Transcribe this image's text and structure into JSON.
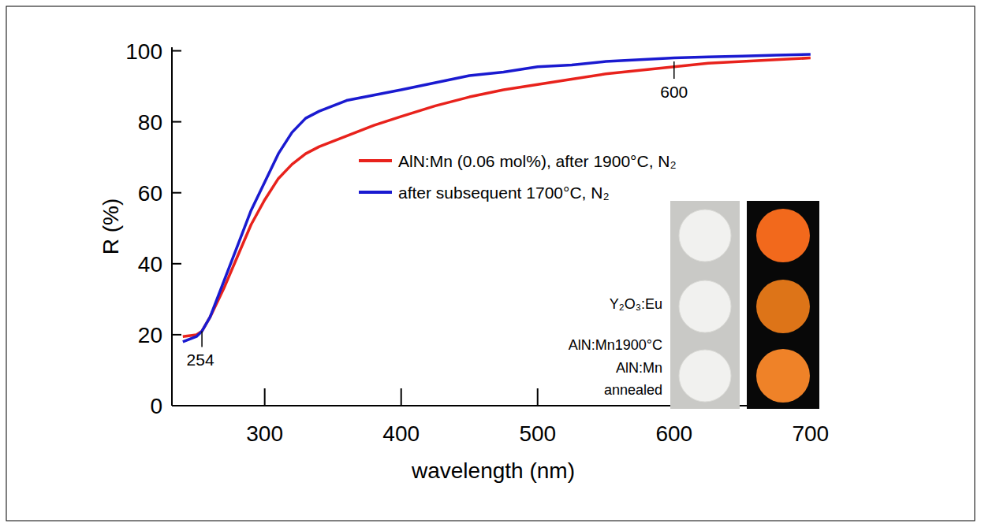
{
  "chart_data": {
    "type": "line",
    "x_label": "wavelength (nm)",
    "y_label": "R (%)",
    "x": [
      240,
      250,
      254,
      260,
      270,
      280,
      290,
      300,
      310,
      320,
      330,
      340,
      360,
      380,
      400,
      425,
      450,
      475,
      500,
      525,
      550,
      575,
      600,
      625,
      650,
      675,
      700
    ],
    "series": [
      {
        "name": "AlN:Mn (0.06 mol%), after 1900°C, N₂",
        "color": "#e8221c",
        "values": [
          19.5,
          20,
          21,
          25,
          33,
          42,
          51,
          58,
          64,
          68,
          71,
          73,
          76,
          79,
          81.5,
          84.5,
          87,
          89,
          90.5,
          92,
          93.5,
          94.5,
          95.5,
          96.5,
          97,
          97.5,
          98
        ]
      },
      {
        "name": "after subsequent 1700°C, N₂",
        "color": "#1a1ad0",
        "values": [
          18,
          19.5,
          21,
          25,
          35,
          45,
          55,
          63,
          71,
          77,
          81,
          83,
          86,
          87.5,
          89,
          91,
          93,
          94,
          95.5,
          96,
          97,
          97.5,
          98,
          98.3,
          98.5,
          98.8,
          99
        ]
      }
    ],
    "xlim": [
      232,
      703
    ],
    "xticks": [
      300,
      400,
      500,
      600,
      700
    ],
    "ylim": [
      0,
      101
    ],
    "yticks": [
      0,
      20,
      40,
      60,
      80,
      100
    ],
    "legend": "right",
    "annotations": [
      {
        "text": "254",
        "x": 254,
        "y": 21
      },
      {
        "text": "600",
        "x": 600,
        "y": 97
      }
    ],
    "inset_labels": [
      "Y₂O₃:Eu",
      "AlN:Mn1900°C",
      "AlN:Mn annealed"
    ]
  }
}
